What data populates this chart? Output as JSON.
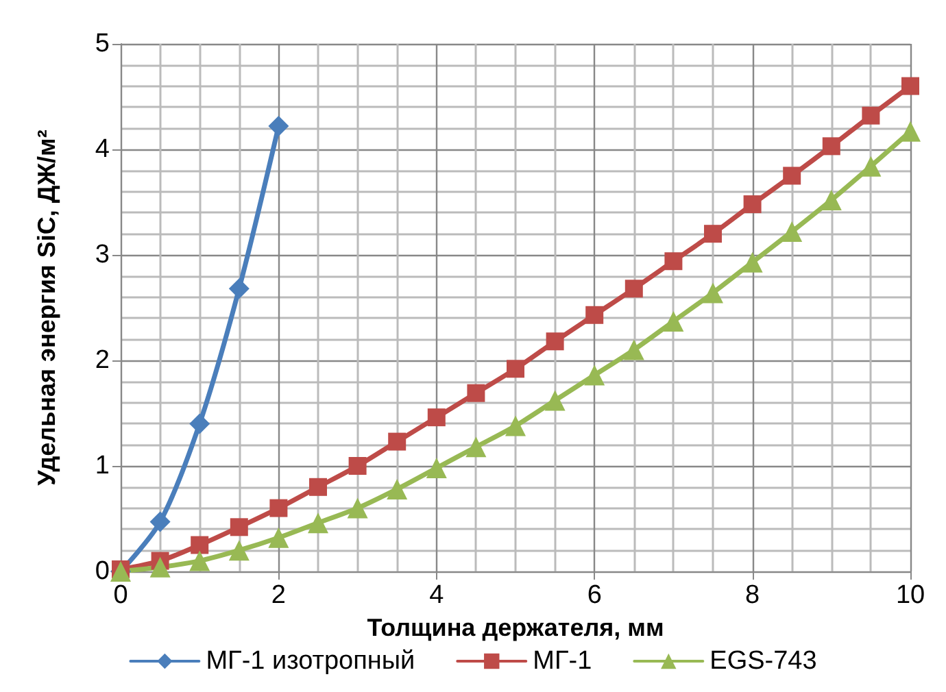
{
  "chart_data": {
    "type": "line",
    "xlabel": "Толщина держателя, мм",
    "ylabel": "Удельная энергия SiC, ДЖ/м²",
    "xlim": [
      0,
      10
    ],
    "xticks": [
      0,
      2,
      4,
      6,
      8,
      10
    ],
    "ylim": [
      0,
      5
    ],
    "yticks": [
      0,
      1,
      2,
      3,
      4,
      5
    ],
    "grid": true,
    "legend": "bottom",
    "line_style": "solid",
    "series": [
      {
        "name": "МГ-1 изотропный",
        "color": "#4a7ebb",
        "marker": "diamond",
        "x": [
          0,
          0.5,
          1,
          1.5,
          2
        ],
        "values": [
          0,
          0.47,
          1.4,
          2.68,
          4.22
        ]
      },
      {
        "name": "МГ-1",
        "color": "#be4b48",
        "marker": "square",
        "x": [
          0,
          0.5,
          1,
          1.5,
          2,
          2.5,
          3,
          3.5,
          4,
          4.5,
          5,
          5.5,
          6,
          6.5,
          7,
          7.5,
          8,
          8.5,
          9,
          9.5,
          10
        ],
        "values": [
          0.02,
          0.1,
          0.25,
          0.42,
          0.6,
          0.8,
          1.0,
          1.23,
          1.46,
          1.69,
          1.92,
          2.18,
          2.43,
          2.68,
          2.94,
          3.2,
          3.48,
          3.75,
          4.03,
          4.32,
          4.6
        ]
      },
      {
        "name": "EGS-743",
        "color": "#98b954",
        "marker": "triangle",
        "x": [
          0,
          0.5,
          1,
          1.5,
          2,
          2.5,
          3,
          3.5,
          4,
          4.5,
          5,
          5.5,
          6,
          6.5,
          7,
          7.5,
          8,
          8.5,
          9,
          9.5,
          10
        ],
        "values": [
          0,
          0.04,
          0.1,
          0.2,
          0.32,
          0.46,
          0.6,
          0.78,
          0.98,
          1.18,
          1.38,
          1.62,
          1.86,
          2.1,
          2.37,
          2.64,
          2.93,
          3.22,
          3.52,
          3.84,
          4.17
        ]
      }
    ]
  }
}
